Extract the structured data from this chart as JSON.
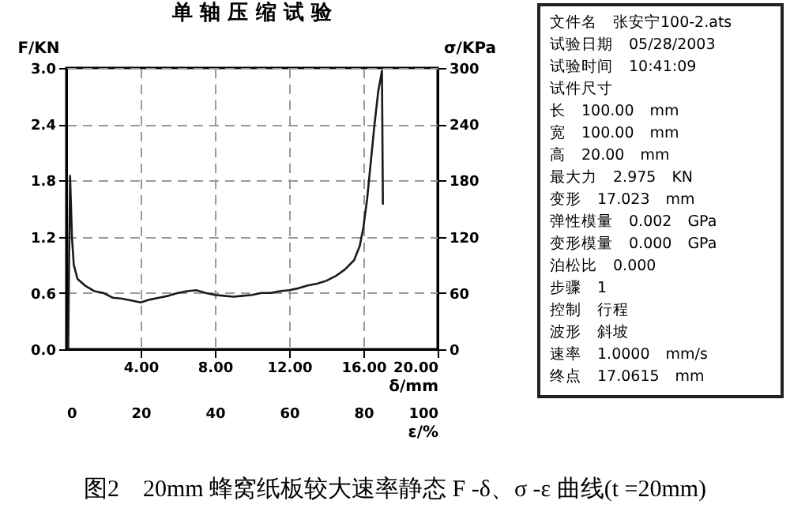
{
  "chart_data": [
    {
      "type": "line",
      "title": "单 轴 压 缩 试 验",
      "xlabel": "δ/mm",
      "x2label": "ε/%",
      "ylabel": "F/KN",
      "y2label": "σ/KPa",
      "x": [
        0.1,
        0.15,
        0.2,
        0.3,
        0.4,
        0.6,
        1.0,
        1.5,
        2,
        2.5,
        3,
        3.5,
        4,
        4.5,
        5,
        5.5,
        6,
        6.5,
        7,
        7.5,
        8,
        8.5,
        9,
        9.5,
        10,
        10.5,
        11,
        11.5,
        12,
        12.5,
        13,
        13.5,
        14,
        14.5,
        15,
        15.5,
        15.8,
        16.0,
        16.2,
        16.4,
        16.6,
        16.8,
        17.0,
        17.05
      ],
      "series": [
        {
          "color": "#1a1a1a",
          "values": [
            0,
            1.0,
            1.85,
            1.2,
            0.9,
            0.75,
            0.68,
            0.62,
            0.6,
            0.55,
            0.54,
            0.52,
            0.5,
            0.53,
            0.55,
            0.57,
            0.6,
            0.62,
            0.63,
            0.6,
            0.58,
            0.57,
            0.56,
            0.57,
            0.58,
            0.6,
            0.6,
            0.62,
            0.63,
            0.65,
            0.68,
            0.7,
            0.73,
            0.78,
            0.85,
            0.95,
            1.1,
            1.3,
            1.6,
            2.0,
            2.4,
            2.75,
            2.97,
            1.55
          ]
        }
      ],
      "xlim": [
        0,
        20
      ],
      "xticks": [
        {
          "value": 4,
          "label": "4.00"
        },
        {
          "value": 8,
          "label": "8.00"
        },
        {
          "value": 12,
          "label": "12.00"
        },
        {
          "value": 16,
          "label": "16.00"
        },
        {
          "value": 20,
          "label": "20.00"
        }
      ],
      "x2lim": [
        0,
        100
      ],
      "x2ticks": [
        0,
        20,
        40,
        60,
        80,
        100
      ],
      "ylim": [
        0,
        3
      ],
      "yticks": [
        {
          "value": 0,
          "label": "0.0"
        },
        0.6,
        1.2,
        1.8,
        2.4,
        {
          "value": 3,
          "label": "3.0"
        }
      ],
      "y2lim": [
        0,
        300
      ],
      "y2ticks": [
        0,
        60,
        120,
        180,
        240,
        300
      ],
      "grid": true,
      "annotations": [
        "图2　20mm 蜂窝纸板较大速率静态 F -δ、σ -ε 曲线(t =20mm)"
      ]
    },
    {
      "type": "other",
      "annotations": [
        "文件名　张安宁100-2.ats",
        "试验日期　05/28/2003",
        "试验时间　10:41:09",
        "试件尺寸",
        "长　100.00　mm",
        "宽　100.00　mm",
        "高　20.00　mm",
        "最大力　2.975　KN",
        "变形　17.023　mm",
        "弹性模量　0.002　GPa",
        "变形模量　0.000　GPa",
        "泊松比　0.000",
        "步骤　1",
        "控制　行程",
        "波形　斜坡",
        "速率　1.0000　mm/s",
        "终点　17.0615　mm"
      ]
    }
  ]
}
